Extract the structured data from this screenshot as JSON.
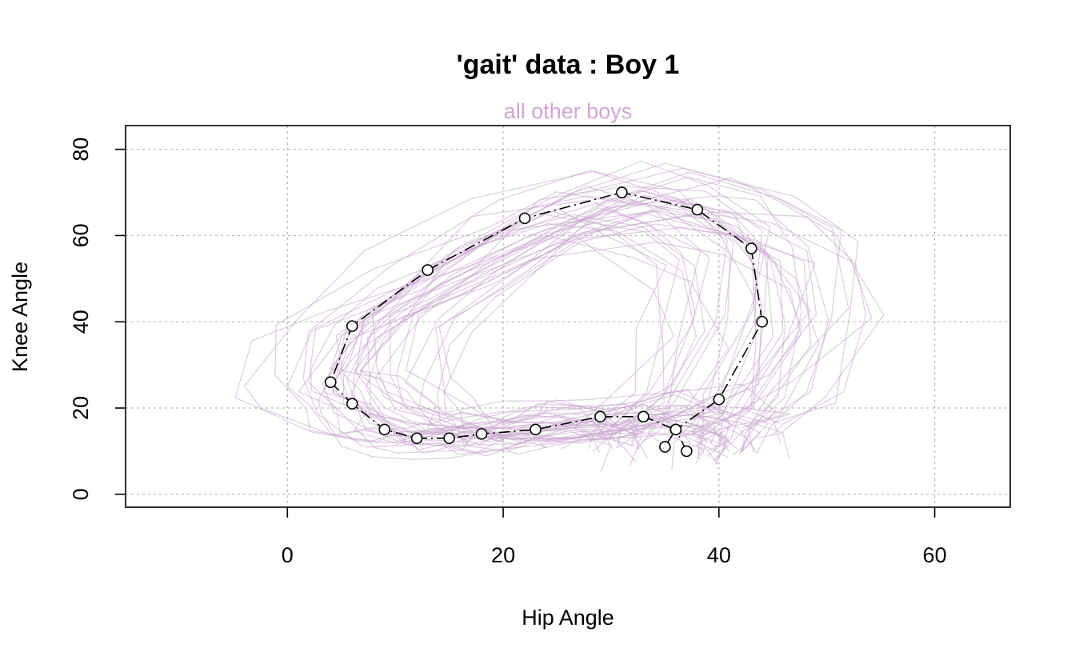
{
  "chart_data": {
    "type": "line",
    "title": "'gait' data : Boy 1",
    "subtitle": "all other boys",
    "xlabel": "Hip Angle",
    "ylabel": "Knee Angle",
    "xlim": [
      -15,
      67
    ],
    "ylim": [
      -3,
      85.5
    ],
    "xticks": [
      0,
      20,
      40,
      60
    ],
    "yticks": [
      0,
      20,
      40,
      60,
      80
    ],
    "grid": true,
    "colors": {
      "other_boys": "#c9a6ce",
      "subtitle": "#cfa6d4",
      "boy": "#000000"
    },
    "series": [
      {
        "name": "",
        "role": "boy-1",
        "x": [
          37,
          36,
          40,
          44,
          43,
          38,
          31,
          22,
          13,
          6,
          4,
          6,
          9,
          12,
          15,
          18,
          23,
          29,
          33,
          36,
          35
        ],
        "y": [
          10,
          15,
          22,
          40,
          57,
          66,
          70,
          64,
          52,
          39,
          26,
          21,
          15,
          13,
          13,
          14,
          15,
          18,
          18,
          15,
          11
        ]
      }
    ]
  }
}
